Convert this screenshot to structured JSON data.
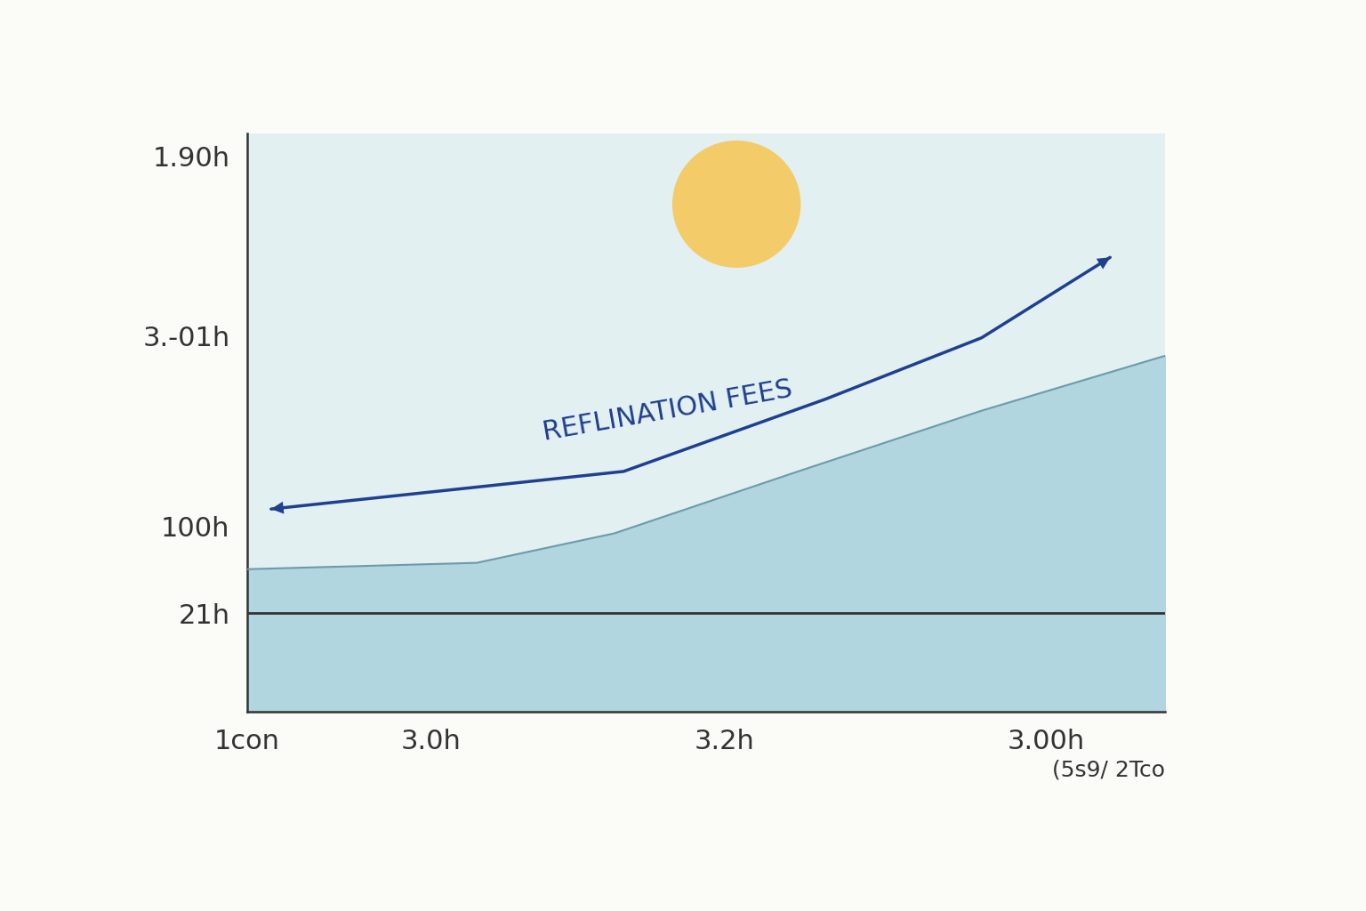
{
  "chart_data": {
    "type": "area",
    "annotations": [
      "REFLINATION FEES"
    ],
    "xlabel": "(5s9/ 2Tco",
    "xlim": [
      0,
      100
    ],
    "xticks": [
      {
        "value": 0,
        "label": "1con"
      },
      {
        "value": 20,
        "label": "3.0h"
      },
      {
        "value": 52,
        "label": "3.2h"
      },
      {
        "value": 87,
        "label": "3.00h"
      }
    ],
    "ylim": [
      0,
      100
    ],
    "yticks": [
      {
        "value": 17,
        "label": "21h"
      },
      {
        "value": 32,
        "label": "100h"
      },
      {
        "value": 65,
        "label": "3.-01h"
      },
      {
        "value": 96,
        "label": "1.90h"
      }
    ],
    "grid": false,
    "series": [
      {
        "type": "area",
        "color": "#a9d2dd",
        "x": [
          0,
          25,
          40,
          60,
          80,
          100
        ],
        "values": [
          24.6,
          25.7,
          30.8,
          41.5,
          52,
          61.5
        ]
      },
      {
        "type": "arrow",
        "color": "#1f3f8f",
        "x": [
          2.6,
          41,
          63,
          80,
          94
        ],
        "values": [
          35,
          41.5,
          54,
          64.6,
          78.5
        ]
      },
      {
        "type": "line",
        "color": "#333333",
        "x": [
          0,
          100
        ],
        "values": [
          17,
          17
        ]
      }
    ]
  }
}
